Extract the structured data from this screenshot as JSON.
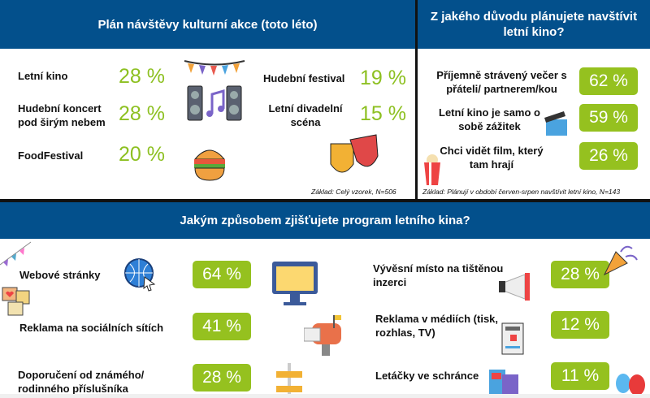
{
  "colors": {
    "header": "#03508c",
    "accent": "#95c11f"
  },
  "left": {
    "title": "Plán návštěvy kulturní akce (toto léto)",
    "items": [
      {
        "label": "Letní kino",
        "value": "28 %"
      },
      {
        "label": "Hudební koncert pod širým nebem",
        "value": "28 %"
      },
      {
        "label": "FoodFestival",
        "value": "20 %"
      },
      {
        "label": "Hudební festival",
        "value": "19 %"
      },
      {
        "label": "Letní divadelní scéna",
        "value": "15 %"
      }
    ],
    "note": "Základ: Celý vzorek, N=506"
  },
  "right": {
    "title": "Z jakého důvodu plánujete navštívit letní kino?",
    "items": [
      {
        "label": "Příjemně strávený večer s přáteli/ partnerem/kou",
        "value": "62 %"
      },
      {
        "label": "Letní kino je samo o sobě zážitek",
        "value": "59 %"
      },
      {
        "label": "Chci vidět film, který tam hrají",
        "value": "26 %"
      }
    ],
    "note": "Základ: Plánují v období červen-srpen navštívit letní kino, N=143"
  },
  "bottom": {
    "title": "Jakým způsobem zjišťujete program letního kina?",
    "items": [
      {
        "label": "Webové stránky",
        "value": "64 %"
      },
      {
        "label": "Reklama na sociálních sítích",
        "value": "41 %"
      },
      {
        "label": "Doporučení od známého/ rodinného příslušníka",
        "value": "28 %"
      },
      {
        "label": "Vývěsní místo na tištěnou inzerci",
        "value": "28 %"
      },
      {
        "label": "Reklama v médiích (tisk, rozhlas, TV)",
        "value": "12 %"
      },
      {
        "label": "Letáčky ve schránce",
        "value": "11 %"
      }
    ]
  }
}
